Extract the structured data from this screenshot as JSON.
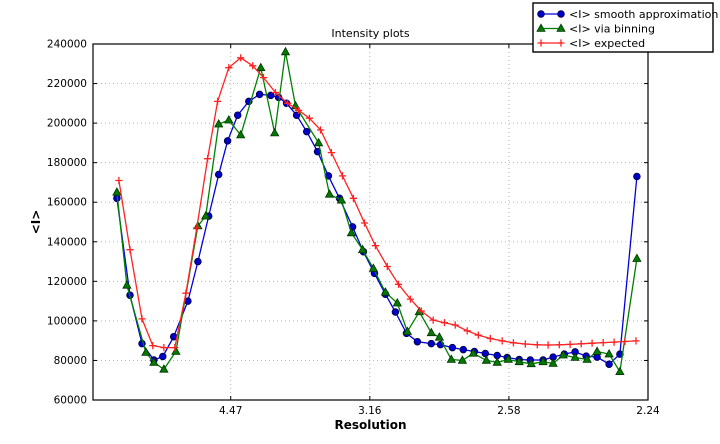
{
  "figure": {
    "title": "Intensity plots",
    "xlabel": "Resolution",
    "ylabel": "<I>"
  },
  "legend": {
    "position": "top-right",
    "entries": [
      {
        "label": "<I> smooth approximation",
        "marker": "circle"
      },
      {
        "label": "<I> via binning",
        "marker": "triangle"
      },
      {
        "label": "<I> expected",
        "marker": "plus"
      }
    ]
  },
  "colors": {
    "smooth_approximation": "#0000dd",
    "via_binning": "#008000",
    "expected": "#ff2222",
    "grid": "#b8b8b8",
    "frame": "#000000",
    "background": "#ffffff"
  },
  "chart_data": {
    "type": "line",
    "title": "Intensity plots",
    "xlabel": "Resolution",
    "ylabel": "<I>",
    "x_axis_note": "x coordinate is 1/d^2 (A^-2); tick labels show resolution d in Angstrom",
    "xlim": [
      0.0005,
      0.2
    ],
    "ylim": [
      60000,
      240000
    ],
    "grid": true,
    "legend_position": "top-right",
    "xticks": [
      {
        "value": 0.05,
        "label": "4.47"
      },
      {
        "value": 0.1,
        "label": "3.16"
      },
      {
        "value": 0.15,
        "label": "2.58"
      },
      {
        "value": 0.2,
        "label": "2.24"
      }
    ],
    "yticks": [
      60000,
      80000,
      100000,
      120000,
      140000,
      160000,
      180000,
      200000,
      220000,
      240000
    ],
    "series": [
      {
        "name": "<I> smooth approximation",
        "color": "#0000dd",
        "marker": "circle",
        "marker_fill": "#0000cc",
        "marker_edge": "#000044",
        "points": [
          [
            0.0091,
            162000
          ],
          [
            0.0138,
            113000
          ],
          [
            0.0181,
            88500
          ],
          [
            0.0224,
            80200
          ],
          [
            0.0256,
            82000
          ],
          [
            0.0295,
            92000
          ],
          [
            0.0346,
            110000
          ],
          [
            0.0382,
            130000
          ],
          [
            0.0421,
            153000
          ],
          [
            0.0457,
            174000
          ],
          [
            0.0489,
            191000
          ],
          [
            0.0525,
            204000
          ],
          [
            0.0565,
            211000
          ],
          [
            0.0604,
            214500
          ],
          [
            0.0644,
            214000
          ],
          [
            0.0672,
            213000
          ],
          [
            0.0701,
            210000
          ],
          [
            0.0737,
            204000
          ],
          [
            0.0773,
            195700
          ],
          [
            0.0812,
            185600
          ],
          [
            0.0851,
            173300
          ],
          [
            0.0891,
            162000
          ],
          [
            0.0938,
            147500
          ],
          [
            0.0977,
            135000
          ],
          [
            0.1017,
            124000
          ],
          [
            0.1056,
            113500
          ],
          [
            0.1092,
            104500
          ],
          [
            0.1132,
            93700
          ],
          [
            0.1171,
            89500
          ],
          [
            0.1221,
            88500
          ],
          [
            0.1254,
            88000
          ],
          [
            0.1297,
            86500
          ],
          [
            0.1336,
            85500
          ],
          [
            0.1376,
            84500
          ],
          [
            0.1415,
            83500
          ],
          [
            0.1458,
            82500
          ],
          [
            0.1494,
            81500
          ],
          [
            0.1537,
            80500
          ],
          [
            0.1577,
            80200
          ],
          [
            0.1623,
            80200
          ],
          [
            0.1659,
            81700
          ],
          [
            0.1699,
            83200
          ],
          [
            0.1738,
            84300
          ],
          [
            0.1778,
            82200
          ],
          [
            0.1817,
            81700
          ],
          [
            0.186,
            78100
          ],
          [
            0.1899,
            83200
          ],
          [
            0.196,
            173000
          ]
        ]
      },
      {
        "name": "<I> via binning",
        "color": "#008000",
        "marker": "triangle",
        "marker_fill": "#007a00",
        "marker_edge": "#003300",
        "points": [
          [
            0.0091,
            165000
          ],
          [
            0.0127,
            118000
          ],
          [
            0.0195,
            84000
          ],
          [
            0.0224,
            79000
          ],
          [
            0.026,
            75500
          ],
          [
            0.0303,
            84500
          ],
          [
            0.0382,
            148000
          ],
          [
            0.041,
            153000
          ],
          [
            0.0457,
            199500
          ],
          [
            0.0493,
            201500
          ],
          [
            0.0536,
            194000
          ],
          [
            0.0608,
            228000
          ],
          [
            0.0658,
            195000
          ],
          [
            0.0697,
            236000
          ],
          [
            0.0733,
            208700
          ],
          [
            0.0816,
            190000
          ],
          [
            0.0855,
            164000
          ],
          [
            0.0898,
            161000
          ],
          [
            0.0934,
            144500
          ],
          [
            0.0974,
            136000
          ],
          [
            0.1013,
            126500
          ],
          [
            0.1056,
            114500
          ],
          [
            0.1099,
            109000
          ],
          [
            0.1135,
            94600
          ],
          [
            0.1178,
            104600
          ],
          [
            0.1221,
            94000
          ],
          [
            0.125,
            91700
          ],
          [
            0.1293,
            80500
          ],
          [
            0.1333,
            80000
          ],
          [
            0.1372,
            83600
          ],
          [
            0.1419,
            80000
          ],
          [
            0.1458,
            79000
          ],
          [
            0.1498,
            80500
          ],
          [
            0.1537,
            79300
          ],
          [
            0.158,
            78300
          ],
          [
            0.1623,
            79300
          ],
          [
            0.1659,
            78500
          ],
          [
            0.1695,
            82700
          ],
          [
            0.1738,
            81500
          ],
          [
            0.1781,
            80500
          ],
          [
            0.1817,
            84500
          ],
          [
            0.186,
            83200
          ],
          [
            0.1899,
            74300
          ],
          [
            0.196,
            131500
          ]
        ]
      },
      {
        "name": "<I> expected",
        "color": "#ff2222",
        "marker": "plus",
        "marker_fill": "#ff2222",
        "marker_edge": "#ff2222",
        "points": [
          [
            0.0098,
            171000
          ],
          [
            0.0138,
            136000
          ],
          [
            0.0181,
            101000
          ],
          [
            0.022,
            87500
          ],
          [
            0.026,
            86500
          ],
          [
            0.0299,
            86500
          ],
          [
            0.0339,
            114000
          ],
          [
            0.0378,
            147000
          ],
          [
            0.0417,
            182000
          ],
          [
            0.0453,
            211000
          ],
          [
            0.0493,
            228000
          ],
          [
            0.0536,
            233000
          ],
          [
            0.0579,
            229000
          ],
          [
            0.0618,
            223000
          ],
          [
            0.0661,
            215500
          ],
          [
            0.0705,
            210000
          ],
          [
            0.0744,
            206500
          ],
          [
            0.0783,
            202500
          ],
          [
            0.0823,
            196500
          ],
          [
            0.0862,
            185100
          ],
          [
            0.0902,
            173300
          ],
          [
            0.0941,
            162000
          ],
          [
            0.0981,
            149500
          ],
          [
            0.102,
            138000
          ],
          [
            0.1063,
            127500
          ],
          [
            0.1103,
            118500
          ],
          [
            0.1146,
            111000
          ],
          [
            0.1185,
            105000
          ],
          [
            0.1228,
            100400
          ],
          [
            0.1268,
            99100
          ],
          [
            0.1307,
            97900
          ],
          [
            0.135,
            95000
          ],
          [
            0.139,
            92800
          ],
          [
            0.1433,
            91100
          ],
          [
            0.1476,
            89900
          ],
          [
            0.1516,
            88900
          ],
          [
            0.1559,
            88300
          ],
          [
            0.1602,
            87900
          ],
          [
            0.1641,
            87800
          ],
          [
            0.1681,
            87900
          ],
          [
            0.172,
            88100
          ],
          [
            0.176,
            88400
          ],
          [
            0.1799,
            88700
          ],
          [
            0.1839,
            89000
          ],
          [
            0.1878,
            89300
          ],
          [
            0.1917,
            89600
          ],
          [
            0.1957,
            89900
          ]
        ]
      }
    ]
  }
}
